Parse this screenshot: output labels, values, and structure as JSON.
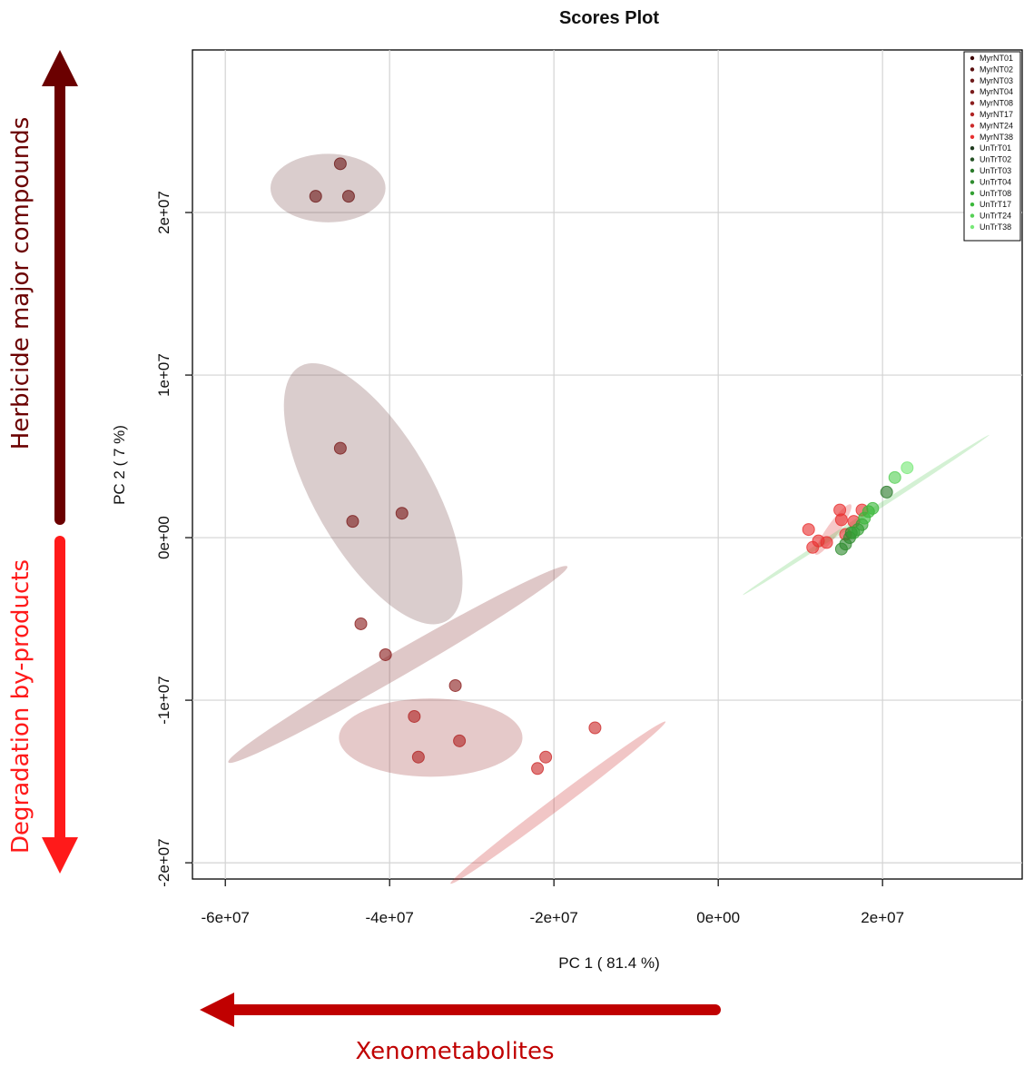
{
  "chart_data": {
    "type": "scatter",
    "title": "Scores Plot",
    "xlabel": "PC 1 ( 81.4 %)",
    "ylabel": "PC 2 ( 7 %)",
    "xlim": [
      -64000000.0,
      37000000.0
    ],
    "ylim": [
      -21000000.0,
      30000000.0
    ],
    "grid": true,
    "legend_placement": "top-right",
    "x_ticks": [
      -60000000.0,
      -40000000.0,
      -20000000.0,
      0,
      20000000.0
    ],
    "x_tick_labels": [
      "-6e+07",
      "-4e+07",
      "-2e+07",
      "0e+00",
      "2e+07"
    ],
    "y_ticks": [
      -20000000.0,
      -10000000.0,
      0,
      10000000.0,
      20000000.0
    ],
    "y_tick_labels": [
      "-2e+07",
      "-1e+07",
      "0e+00",
      "1e+07",
      "2e+07"
    ],
    "series": [
      {
        "name": "MyrNT01",
        "color": "#3b0000",
        "points": []
      },
      {
        "name": "MyrNT02",
        "color": "#5a0f0f",
        "points": []
      },
      {
        "name": "MyrNT03",
        "color": "#6e1a1a",
        "points": [
          [
            -46000000.0,
            23000000.0
          ],
          [
            -49000000.0,
            21000000.0
          ],
          [
            -45000000.0,
            21000000.0
          ]
        ],
        "ellipse": {
          "cx": -47500000.0,
          "cy": 21500000.0,
          "rx": 4700000.0,
          "ry": 2800000.0,
          "angle": 0,
          "color": "#7a4a4a"
        }
      },
      {
        "name": "MyrNT04",
        "color": "#7a1c1c",
        "points": [
          [
            -46000000.0,
            5500000.0
          ],
          [
            -44500000.0,
            1000000.0
          ],
          [
            -38500000.0,
            1500000.0
          ]
        ],
        "ellipse": {
          "cx": -42000000.0,
          "cy": 2700000.0,
          "rx": 12000000.0,
          "ry": 4800000.0,
          "angle": 60,
          "color": "#7a4a4a"
        }
      },
      {
        "name": "MyrNT08",
        "color": "#8b1e1e",
        "points": [
          [
            -43500000.0,
            -5300000.0
          ],
          [
            -40500000.0,
            -7200000.0
          ],
          [
            -32000000.0,
            -9100000.0
          ]
        ],
        "ellipse": {
          "cx": -39000000.0,
          "cy": -7800000.0,
          "rx": 16000000.0,
          "ry": 1000000.0,
          "angle": -30,
          "color": "#8b3a3a"
        }
      },
      {
        "name": "MyrNT17",
        "color": "#b02424",
        "points": [
          [
            -37000000.0,
            -11000000.0
          ],
          [
            -36500000.0,
            -13500000.0
          ],
          [
            -31500000.0,
            -12500000.0
          ]
        ],
        "ellipse": {
          "cx": -35000000.0,
          "cy": -12300000.0,
          "rx": 7500000.0,
          "ry": 3200000.0,
          "angle": 0,
          "color": "#a03c3c"
        }
      },
      {
        "name": "MyrNT24",
        "color": "#cc2a2a",
        "points": [
          [
            -15000000.0,
            -11700000.0
          ],
          [
            -21000000.0,
            -13500000.0
          ],
          [
            -22000000.0,
            -14200000.0
          ]
        ],
        "ellipse": {
          "cx": -19500000.0,
          "cy": -16300000.0,
          "rx": 11000000.0,
          "ry": 500000.0,
          "angle": -37,
          "color": "#cc3333"
        }
      },
      {
        "name": "MyrNT38",
        "color": "#e83030",
        "points": [
          [
            11000000.0,
            500000.0
          ],
          [
            11500000.0,
            -600000.0
          ],
          [
            12200000.0,
            -200000.0
          ],
          [
            13200000.0,
            -300000.0
          ],
          [
            14800000.0,
            1700000.0
          ],
          [
            15000000.0,
            1100000.0
          ],
          [
            15500000.0,
            200000.0
          ],
          [
            16500000.0,
            1000000.0
          ],
          [
            17500000.0,
            1700000.0
          ]
        ],
        "ellipse": {
          "cx": 14000000.0,
          "cy": 500000.0,
          "rx": 2500000.0,
          "ry": 500000.0,
          "angle": -55,
          "color": "#dd3b3b"
        }
      },
      {
        "name": "UnTrT01",
        "color": "#1f3a1f",
        "points": []
      },
      {
        "name": "UnTrT02",
        "color": "#255225",
        "points": []
      },
      {
        "name": "UnTrT03",
        "color": "#2a7a2a",
        "points": [
          [
            20500000.0,
            2800000.0
          ]
        ]
      },
      {
        "name": "UnTrT04",
        "color": "#2e8b2e",
        "points": [
          [
            15000000.0,
            -700000.0
          ],
          [
            15500000.0,
            -400000.0
          ],
          [
            16000000.0,
            0
          ],
          [
            16200000.0,
            300000.0
          ]
        ]
      },
      {
        "name": "UnTrT08",
        "color": "#33a033",
        "points": [
          [
            16500000.0,
            300000.0
          ],
          [
            17000000.0,
            500000.0
          ],
          [
            17500000.0,
            800000.0
          ]
        ]
      },
      {
        "name": "UnTrT17",
        "color": "#3ab83a",
        "points": [
          [
            17800000.0,
            1200000.0
          ],
          [
            18300000.0,
            1600000.0
          ],
          [
            18800000.0,
            1800000.0
          ]
        ]
      },
      {
        "name": "UnTrT24",
        "color": "#55d055",
        "points": [
          [
            21500000.0,
            3700000.0
          ]
        ]
      },
      {
        "name": "UnTrT38",
        "color": "#78e878",
        "points": [
          [
            23000000.0,
            4300000.0
          ]
        ],
        "ellipse": {
          "cx": 18000000.0,
          "cy": 1400000.0,
          "rx": 12000000.0,
          "ry": 200000.0,
          "angle": -33,
          "color": "#66cc66"
        }
      }
    ]
  },
  "annotations": {
    "up_label": "Herbicide major compounds",
    "up_color": "#6b0000",
    "down_label": "Degradation by-products",
    "down_color": "#ff1a1a",
    "left_label": "Xenometabolites",
    "left_color": "#c00000"
  }
}
